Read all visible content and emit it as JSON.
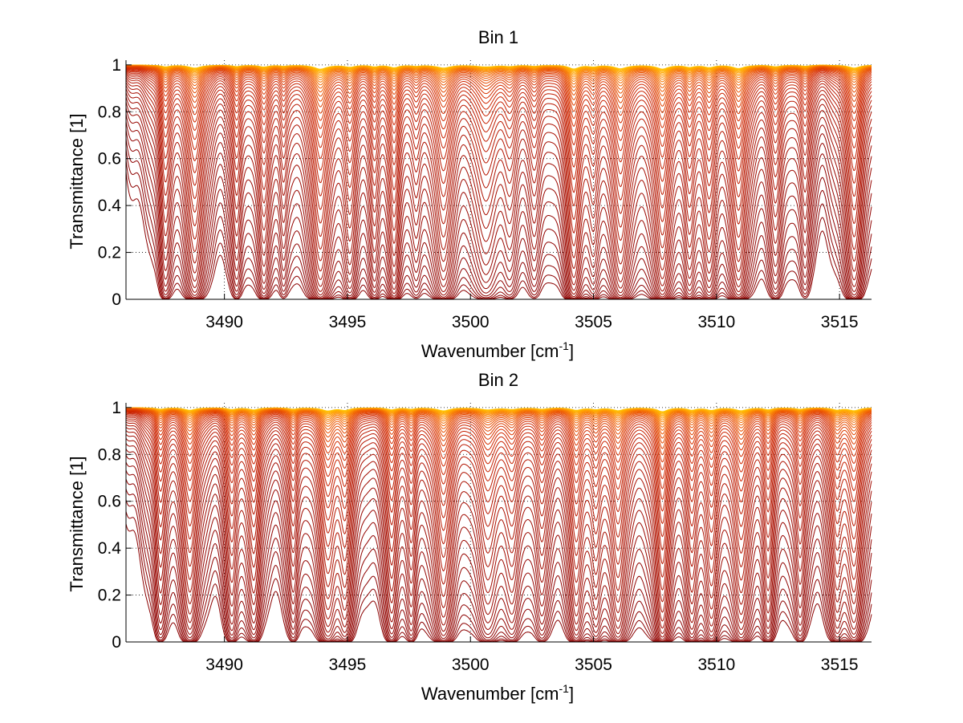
{
  "chart_data": [
    {
      "type": "line",
      "title": "Bin 1",
      "xlabel": "Wavenumber [cm",
      "xlabel_sup": "-1",
      "xlabel_close": "]",
      "ylabel": "Transmittance [1]",
      "xlim": [
        3486,
        3516.3
      ],
      "ylim": [
        0,
        1.02
      ],
      "xticks": [
        3490,
        3495,
        3500,
        3505,
        3510,
        3515
      ],
      "xtick_labels": [
        "3490",
        "3495",
        "3500",
        "3505",
        "3510",
        "3515"
      ],
      "yticks": [
        0,
        0.2,
        0.4,
        0.6,
        0.8,
        1
      ],
      "ytick_labels": [
        "0",
        "0.2",
        "0.4",
        "0.6",
        "0.8",
        "1"
      ],
      "grid": true,
      "legend": "none",
      "series_count": 44,
      "colormap": [
        "#8b0000",
        "#b51400",
        "#d22800",
        "#ee5a00",
        "#ff9a00",
        "#ffc800"
      ],
      "absorption_lines": [
        {
          "x": 3487.6,
          "depth": 0.9,
          "width": 0.22
        },
        {
          "x": 3488.8,
          "depth": 1.6,
          "width": 0.3
        },
        {
          "x": 3490.5,
          "depth": 0.7,
          "width": 0.2
        },
        {
          "x": 3491.6,
          "depth": 1.0,
          "width": 0.24
        },
        {
          "x": 3492.4,
          "depth": 0.5,
          "width": 0.18
        },
        {
          "x": 3493.9,
          "depth": 2.2,
          "width": 0.3
        },
        {
          "x": 3495.1,
          "depth": 1.0,
          "width": 0.25
        },
        {
          "x": 3496.1,
          "depth": 0.8,
          "width": 0.2
        },
        {
          "x": 3496.9,
          "depth": 1.3,
          "width": 0.22
        },
        {
          "x": 3497.8,
          "depth": 0.5,
          "width": 0.22
        },
        {
          "x": 3498.9,
          "depth": 1.5,
          "width": 0.32
        },
        {
          "x": 3500.6,
          "depth": 0.9,
          "width": 0.45
        },
        {
          "x": 3501.6,
          "depth": 0.6,
          "width": 0.3
        },
        {
          "x": 3502.6,
          "depth": 0.5,
          "width": 0.25
        },
        {
          "x": 3504.2,
          "depth": 2.0,
          "width": 0.25
        },
        {
          "x": 3505.0,
          "depth": 0.7,
          "width": 0.22
        },
        {
          "x": 3506.1,
          "depth": 1.9,
          "width": 0.3
        },
        {
          "x": 3507.8,
          "depth": 2.1,
          "width": 0.28
        },
        {
          "x": 3508.9,
          "depth": 1.0,
          "width": 0.22
        },
        {
          "x": 3509.7,
          "depth": 1.2,
          "width": 0.25
        },
        {
          "x": 3510.9,
          "depth": 1.8,
          "width": 0.28
        },
        {
          "x": 3512.4,
          "depth": 0.8,
          "width": 0.25
        },
        {
          "x": 3513.6,
          "depth": 0.6,
          "width": 0.22
        },
        {
          "x": 3515.6,
          "depth": 1.6,
          "width": 0.28
        }
      ]
    },
    {
      "type": "line",
      "title": "Bin 2",
      "xlabel": "Wavenumber [cm",
      "xlabel_sup": "-1",
      "xlabel_close": "]",
      "ylabel": "Transmittance [1]",
      "xlim": [
        3486,
        3516.3
      ],
      "ylim": [
        0,
        1.02
      ],
      "xticks": [
        3490,
        3495,
        3500,
        3505,
        3510,
        3515
      ],
      "xtick_labels": [
        "3490",
        "3495",
        "3500",
        "3505",
        "3510",
        "3515"
      ],
      "yticks": [
        0,
        0.2,
        0.4,
        0.6,
        0.8,
        1
      ],
      "ytick_labels": [
        "0",
        "0.2",
        "0.4",
        "0.6",
        "0.8",
        "1"
      ],
      "grid": true,
      "legend": "none",
      "series_count": 44,
      "colormap": [
        "#8b0000",
        "#b51400",
        "#d22800",
        "#ee5a00",
        "#ff9a00",
        "#ffc800"
      ],
      "absorption_lines": [
        {
          "x": 3487.4,
          "depth": 0.8,
          "width": 0.22
        },
        {
          "x": 3488.6,
          "depth": 1.3,
          "width": 0.28
        },
        {
          "x": 3490.3,
          "depth": 0.9,
          "width": 0.22
        },
        {
          "x": 3491.2,
          "depth": 1.1,
          "width": 0.24
        },
        {
          "x": 3492.8,
          "depth": 0.7,
          "width": 0.2
        },
        {
          "x": 3494.2,
          "depth": 1.6,
          "width": 0.3
        },
        {
          "x": 3494.9,
          "depth": 1.2,
          "width": 0.24
        },
        {
          "x": 3496.8,
          "depth": 1.0,
          "width": 0.22
        },
        {
          "x": 3497.6,
          "depth": 0.7,
          "width": 0.2
        },
        {
          "x": 3498.9,
          "depth": 1.6,
          "width": 0.3
        },
        {
          "x": 3500.7,
          "depth": 1.0,
          "width": 0.4
        },
        {
          "x": 3501.7,
          "depth": 0.8,
          "width": 0.3
        },
        {
          "x": 3502.9,
          "depth": 0.7,
          "width": 0.25
        },
        {
          "x": 3504.3,
          "depth": 1.3,
          "width": 0.25
        },
        {
          "x": 3505.1,
          "depth": 0.8,
          "width": 0.22
        },
        {
          "x": 3506.0,
          "depth": 1.5,
          "width": 0.28
        },
        {
          "x": 3507.8,
          "depth": 2.1,
          "width": 0.24
        },
        {
          "x": 3509.0,
          "depth": 1.1,
          "width": 0.22
        },
        {
          "x": 3509.8,
          "depth": 1.3,
          "width": 0.25
        },
        {
          "x": 3511.0,
          "depth": 1.5,
          "width": 0.28
        },
        {
          "x": 3512.1,
          "depth": 1.0,
          "width": 0.22
        },
        {
          "x": 3513.4,
          "depth": 0.8,
          "width": 0.22
        },
        {
          "x": 3514.9,
          "depth": 1.1,
          "width": 0.24
        },
        {
          "x": 3515.6,
          "depth": 1.5,
          "width": 0.28
        }
      ]
    }
  ]
}
